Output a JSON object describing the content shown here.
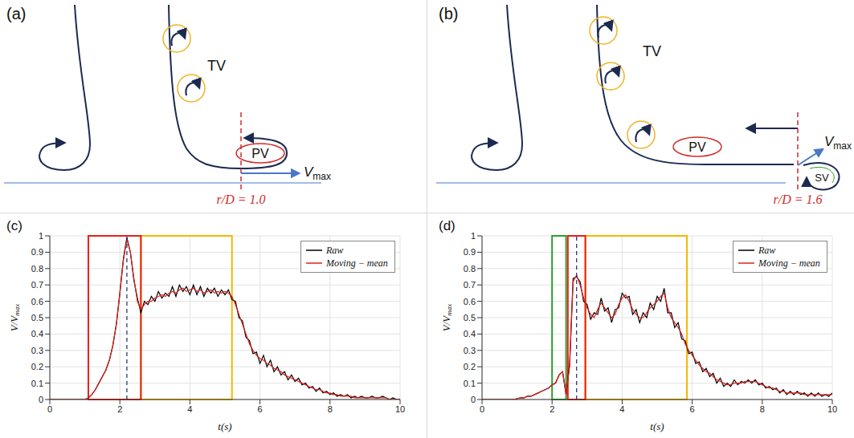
{
  "diagrams": [
    {
      "letter": "(a)",
      "labels": {
        "tv": "TV",
        "pv": "PV"
      },
      "velocity": {
        "symbol": "V",
        "subscript": "max"
      },
      "marker_line": "r/D = 1.0"
    },
    {
      "letter": "(b)",
      "labels": {
        "tv": "TV",
        "pv": "PV",
        "sv": "SV"
      },
      "velocity": {
        "symbol": "V",
        "subscript": "max"
      },
      "marker_line": "r/D = 1.6"
    }
  ],
  "chart_data": [
    {
      "letter": "(c)",
      "type": "line",
      "xlabel": "t(s)",
      "ylabel": {
        "text": "V/V",
        "subscript": "max"
      },
      "xlim": [
        0,
        10
      ],
      "ylim": [
        0,
        1
      ],
      "xticks": [
        0,
        2,
        4,
        6,
        8,
        10
      ],
      "yticks": [
        0,
        0.1,
        0.2,
        0.3,
        0.4,
        0.5,
        0.6,
        0.7,
        0.8,
        0.9,
        1
      ],
      "grid": true,
      "legend": "upper right",
      "x": [
        0,
        0.1,
        0.2,
        0.3,
        0.4,
        0.5,
        0.6,
        0.7,
        0.8,
        0.9,
        1,
        1.1,
        1.2,
        1.3,
        1.4,
        1.5,
        1.6,
        1.7,
        1.8,
        1.9,
        2,
        2.1,
        2.2,
        2.3,
        2.4,
        2.5,
        2.6,
        2.7,
        2.8,
        2.9,
        3,
        3.1,
        3.2,
        3.3,
        3.4,
        3.5,
        3.6,
        3.7,
        3.8,
        3.9,
        4,
        4.1,
        4.2,
        4.3,
        4.4,
        4.5,
        4.6,
        4.7,
        4.8,
        4.9,
        5,
        5.1,
        5.2,
        5.3,
        5.4,
        5.5,
        5.6,
        5.7,
        5.8,
        5.9,
        6,
        6.1,
        6.2,
        6.3,
        6.4,
        6.5,
        6.6,
        6.7,
        6.8,
        6.9,
        7,
        7.1,
        7.2,
        7.3,
        7.4,
        7.5,
        7.6,
        7.7,
        7.8,
        7.9,
        8,
        8.1,
        8.2,
        8.3,
        8.4,
        8.5,
        8.6,
        8.7,
        8.8,
        8.9,
        9,
        9.1,
        9.2,
        9.3,
        9.4,
        9.5,
        9.6,
        9.7,
        9.8,
        9.9,
        10
      ],
      "series": [
        {
          "name": "Raw",
          "color": "#000000",
          "values": [
            0,
            0,
            0,
            0,
            0,
            0,
            0,
            0,
            0,
            0,
            0,
            0.01,
            0.03,
            0.06,
            0.1,
            0.14,
            0.18,
            0.24,
            0.33,
            0.46,
            0.65,
            0.86,
            0.99,
            0.9,
            0.73,
            0.62,
            0.53,
            0.6,
            0.58,
            0.63,
            0.6,
            0.66,
            0.62,
            0.65,
            0.63,
            0.69,
            0.63,
            0.7,
            0.66,
            0.69,
            0.64,
            0.7,
            0.64,
            0.69,
            0.63,
            0.68,
            0.65,
            0.68,
            0.63,
            0.67,
            0.64,
            0.67,
            0.61,
            0.6,
            0.5,
            0.48,
            0.38,
            0.36,
            0.28,
            0.29,
            0.22,
            0.27,
            0.2,
            0.24,
            0.17,
            0.2,
            0.15,
            0.17,
            0.12,
            0.15,
            0.11,
            0.13,
            0.09,
            0.1,
            0.07,
            0.08,
            0.05,
            0.07,
            0.04,
            0.05,
            0.03,
            0.04,
            0.02,
            0.03,
            0.02,
            0.03,
            0.01,
            0.02,
            0.01,
            0.02,
            0.01,
            0.01,
            0.02,
            0.01,
            0.01,
            0.02,
            0.01,
            0,
            0.01,
            0,
            0
          ]
        },
        {
          "name": "Moving − mean",
          "color": "#e0201b",
          "values": [
            0,
            0,
            0,
            0,
            0,
            0,
            0,
            0,
            0,
            0,
            0,
            0.01,
            0.03,
            0.06,
            0.1,
            0.14,
            0.18,
            0.24,
            0.33,
            0.46,
            0.65,
            0.85,
            0.98,
            0.9,
            0.74,
            0.6,
            0.55,
            0.58,
            0.6,
            0.6,
            0.62,
            0.63,
            0.64,
            0.63,
            0.65,
            0.66,
            0.65,
            0.67,
            0.68,
            0.66,
            0.67,
            0.68,
            0.66,
            0.67,
            0.65,
            0.66,
            0.67,
            0.65,
            0.66,
            0.65,
            0.66,
            0.65,
            0.63,
            0.58,
            0.52,
            0.46,
            0.4,
            0.34,
            0.3,
            0.27,
            0.25,
            0.24,
            0.22,
            0.21,
            0.19,
            0.18,
            0.17,
            0.15,
            0.14,
            0.13,
            0.12,
            0.11,
            0.1,
            0.09,
            0.08,
            0.07,
            0.06,
            0.06,
            0.05,
            0.04,
            0.04,
            0.03,
            0.03,
            0.02,
            0.02,
            0.02,
            0.02,
            0.01,
            0.01,
            0.01,
            0.01,
            0.01,
            0.01,
            0.01,
            0.01,
            0.01,
            0.01,
            0,
            0,
            0,
            0
          ]
        }
      ],
      "windows": [
        {
          "start": 2.6,
          "end": 5.2,
          "color": "#f5b800"
        },
        {
          "start": 1.1,
          "end": 2.6,
          "color": "#e8201a"
        }
      ],
      "peak_time": 2.2
    },
    {
      "letter": "(d)",
      "type": "line",
      "xlabel": "t(s)",
      "ylabel": {
        "text": "V/V",
        "subscript": "max"
      },
      "xlim": [
        0,
        10
      ],
      "ylim": [
        0,
        1
      ],
      "xticks": [
        0,
        2,
        4,
        6,
        8,
        10
      ],
      "yticks": [
        0,
        0.1,
        0.2,
        0.3,
        0.4,
        0.5,
        0.6,
        0.7,
        0.8,
        0.9,
        1
      ],
      "grid": true,
      "legend": "upper right",
      "x": [
        0,
        0.1,
        0.2,
        0.3,
        0.4,
        0.5,
        0.6,
        0.7,
        0.8,
        0.9,
        1,
        1.1,
        1.2,
        1.3,
        1.4,
        1.5,
        1.6,
        1.7,
        1.8,
        1.9,
        2,
        2.1,
        2.2,
        2.3,
        2.4,
        2.5,
        2.6,
        2.7,
        2.8,
        2.9,
        3,
        3.1,
        3.2,
        3.3,
        3.4,
        3.5,
        3.6,
        3.7,
        3.8,
        3.9,
        4,
        4.1,
        4.2,
        4.3,
        4.4,
        4.5,
        4.6,
        4.7,
        4.8,
        4.9,
        5,
        5.1,
        5.2,
        5.3,
        5.4,
        5.5,
        5.6,
        5.7,
        5.8,
        5.9,
        6,
        6.1,
        6.2,
        6.3,
        6.4,
        6.5,
        6.6,
        6.7,
        6.8,
        6.9,
        7,
        7.1,
        7.2,
        7.3,
        7.4,
        7.5,
        7.6,
        7.7,
        7.8,
        7.9,
        8,
        8.1,
        8.2,
        8.3,
        8.4,
        8.5,
        8.6,
        8.7,
        8.8,
        8.9,
        9,
        9.1,
        9.2,
        9.3,
        9.4,
        9.5,
        9.6,
        9.7,
        9.8,
        9.9,
        10
      ],
      "series": [
        {
          "name": "Raw",
          "color": "#000000",
          "values": [
            0,
            0,
            0,
            0,
            0,
            0,
            0,
            0,
            0,
            0,
            0.005,
            0.01,
            0.01,
            0.02,
            0.02,
            0.03,
            0.04,
            0.05,
            0.06,
            0.07,
            0.09,
            0.1,
            0.15,
            0.17,
            0.03,
            0.22,
            0.74,
            0.75,
            0.72,
            0.6,
            0.58,
            0.49,
            0.53,
            0.52,
            0.62,
            0.54,
            0.56,
            0.47,
            0.55,
            0.56,
            0.65,
            0.62,
            0.63,
            0.52,
            0.55,
            0.47,
            0.53,
            0.5,
            0.59,
            0.55,
            0.63,
            0.6,
            0.68,
            0.53,
            0.53,
            0.44,
            0.47,
            0.37,
            0.36,
            0.28,
            0.29,
            0.22,
            0.23,
            0.17,
            0.19,
            0.14,
            0.16,
            0.1,
            0.13,
            0.08,
            0.1,
            0.08,
            0.12,
            0.09,
            0.11,
            0.1,
            0.12,
            0.1,
            0.12,
            0.09,
            0.1,
            0.07,
            0.08,
            0.06,
            0.07,
            0.04,
            0.06,
            0.03,
            0.05,
            0.03,
            0.05,
            0.03,
            0.04,
            0.02,
            0.04,
            0.02,
            0.04,
            0.02,
            0.03,
            0.02,
            0.04
          ]
        },
        {
          "name": "Moving − mean",
          "color": "#e0201b",
          "values": [
            0,
            0,
            0,
            0,
            0,
            0,
            0,
            0,
            0,
            0,
            0.005,
            0.01,
            0.01,
            0.02,
            0.02,
            0.03,
            0.04,
            0.05,
            0.06,
            0.07,
            0.09,
            0.1,
            0.15,
            0.17,
            0.03,
            0.2,
            0.72,
            0.76,
            0.7,
            0.62,
            0.56,
            0.52,
            0.5,
            0.55,
            0.59,
            0.56,
            0.53,
            0.5,
            0.52,
            0.58,
            0.62,
            0.64,
            0.6,
            0.55,
            0.52,
            0.5,
            0.5,
            0.53,
            0.56,
            0.58,
            0.6,
            0.63,
            0.65,
            0.56,
            0.5,
            0.47,
            0.44,
            0.4,
            0.34,
            0.3,
            0.27,
            0.24,
            0.21,
            0.19,
            0.17,
            0.16,
            0.14,
            0.12,
            0.11,
            0.1,
            0.09,
            0.09,
            0.1,
            0.1,
            0.1,
            0.11,
            0.11,
            0.11,
            0.11,
            0.1,
            0.09,
            0.08,
            0.07,
            0.07,
            0.06,
            0.05,
            0.05,
            0.04,
            0.04,
            0.04,
            0.04,
            0.04,
            0.03,
            0.03,
            0.03,
            0.03,
            0.03,
            0.03,
            0.03,
            0.03,
            0.03
          ]
        }
      ],
      "windows": [
        {
          "start": 2.95,
          "end": 5.85,
          "color": "#f5b800"
        },
        {
          "start": 2.0,
          "end": 2.4,
          "color": "#2ca02c"
        },
        {
          "start": 2.45,
          "end": 2.95,
          "color": "#e8201a"
        }
      ],
      "peak_time": 2.7
    }
  ]
}
